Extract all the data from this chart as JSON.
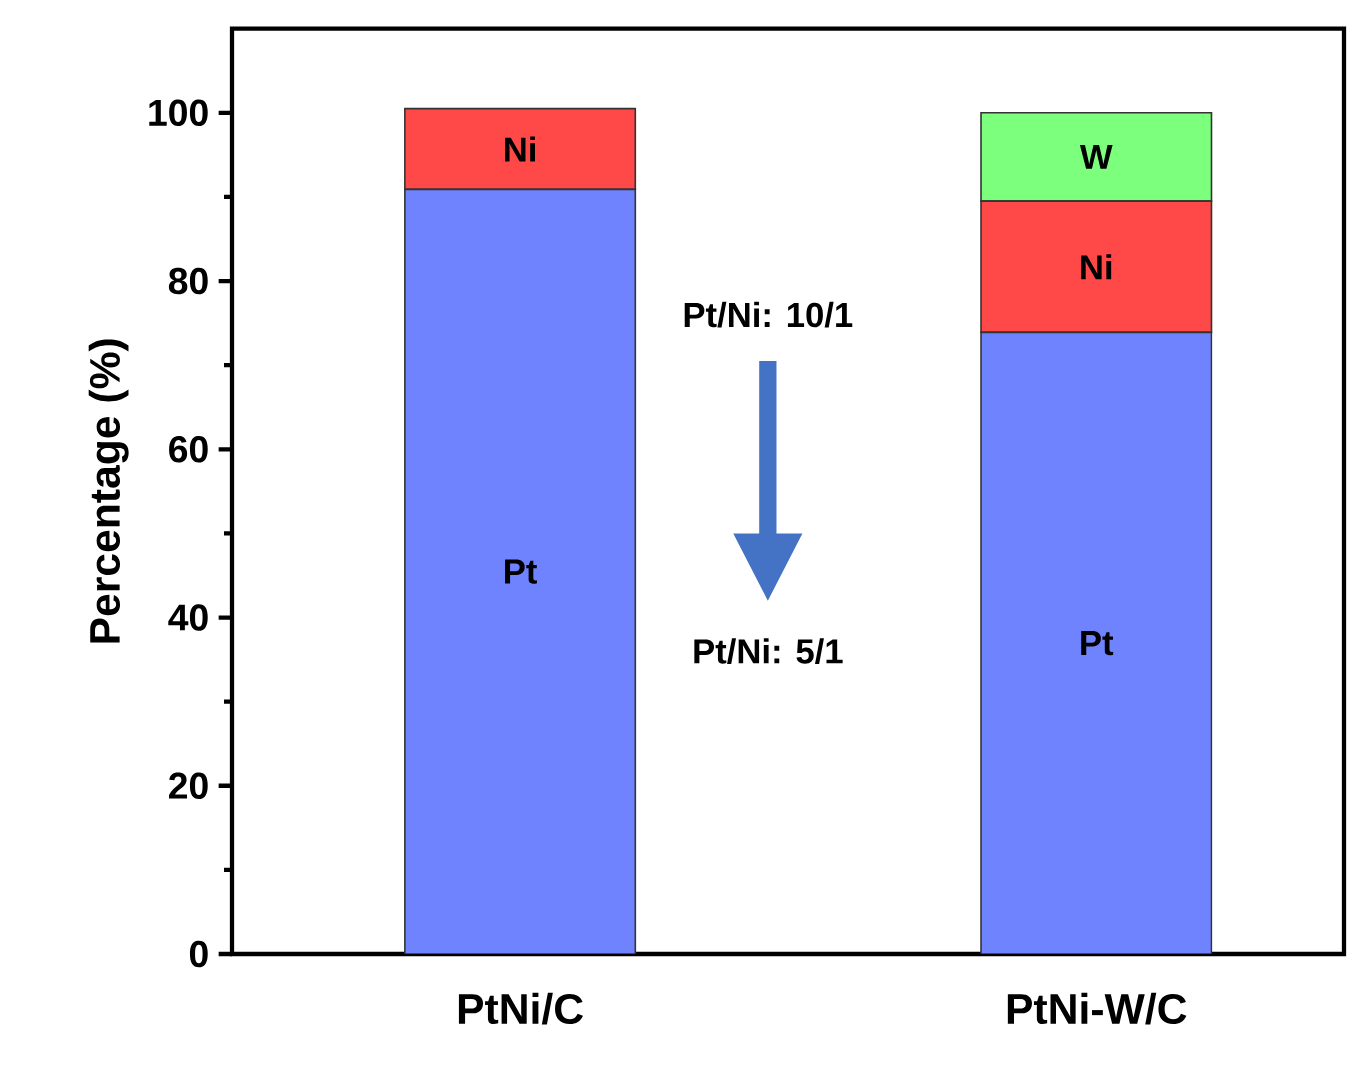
{
  "chart_data": {
    "type": "bar",
    "stacked": true,
    "ylabel": "Percentage (%)",
    "categories": [
      "PtNi/C",
      "PtNi-W/C"
    ],
    "series": [
      {
        "name": "Pt",
        "color": "#7083ff",
        "values": [
          90.9,
          73.9
        ]
      },
      {
        "name": "Ni",
        "color": "#ff4848",
        "values": [
          9.6,
          15.6
        ]
      },
      {
        "name": "W",
        "color": "#7cff7c",
        "values": [
          null,
          10.5
        ]
      }
    ],
    "ylim": [
      0,
      110
    ],
    "yticks": [
      0,
      20,
      40,
      60,
      80,
      100
    ],
    "grid": false,
    "annotations": [
      "Pt/Ni:  10/1",
      "Pt/Ni:  5/1"
    ]
  }
}
